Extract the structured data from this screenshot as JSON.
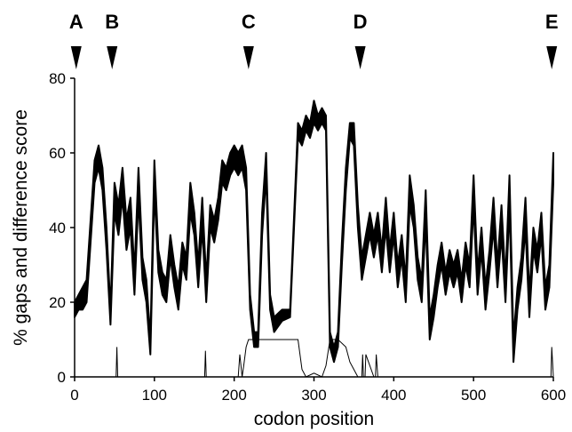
{
  "chart_data": {
    "type": "line",
    "xlabel": "codon position",
    "ylabel": "% gaps and difference score",
    "xlim": [
      0,
      600
    ],
    "ylim": [
      0,
      80
    ],
    "x_ticks": [
      0,
      100,
      200,
      300,
      400,
      500,
      600
    ],
    "y_ticks": [
      0,
      20,
      40,
      60,
      80
    ],
    "grid": false,
    "markers": [
      {
        "label": "A",
        "x": 2
      },
      {
        "label": "B",
        "x": 47
      },
      {
        "label": "C",
        "x": 218
      },
      {
        "label": "D",
        "x": 358
      },
      {
        "label": "E",
        "x": 598
      }
    ],
    "series": [
      {
        "kind": "difference-score-band",
        "color": "#000000",
        "x": [
          0,
          5,
          10,
          15,
          20,
          25,
          30,
          35,
          40,
          45,
          50,
          55,
          60,
          65,
          70,
          75,
          80,
          85,
          90,
          95,
          100,
          105,
          110,
          115,
          120,
          125,
          130,
          135,
          140,
          145,
          150,
          155,
          160,
          165,
          170,
          175,
          180,
          185,
          190,
          195,
          200,
          205,
          210,
          215,
          220,
          225,
          230,
          235,
          240,
          245,
          250,
          260,
          270,
          280,
          285,
          290,
          295,
          300,
          305,
          310,
          315,
          320,
          325,
          330,
          335,
          340,
          345,
          350,
          355,
          360,
          365,
          370,
          375,
          380,
          385,
          390,
          395,
          400,
          405,
          410,
          415,
          420,
          425,
          430,
          435,
          440,
          445,
          450,
          455,
          460,
          465,
          470,
          475,
          480,
          485,
          490,
          495,
          500,
          505,
          510,
          515,
          520,
          525,
          530,
          535,
          540,
          545,
          550,
          555,
          560,
          565,
          570,
          575,
          580,
          585,
          590,
          595,
          600
        ],
        "upper": [
          20,
          22,
          24,
          26,
          42,
          58,
          62,
          56,
          40,
          18,
          52,
          46,
          56,
          42,
          48,
          28,
          56,
          32,
          26,
          10,
          58,
          34,
          28,
          26,
          38,
          30,
          24,
          36,
          32,
          52,
          44,
          30,
          48,
          26,
          46,
          42,
          48,
          58,
          56,
          60,
          62,
          60,
          62,
          56,
          22,
          12,
          12,
          44,
          60,
          22,
          16,
          18,
          18,
          68,
          66,
          70,
          68,
          74,
          70,
          72,
          70,
          12,
          8,
          12,
          36,
          56,
          68,
          68,
          46,
          32,
          38,
          44,
          38,
          44,
          34,
          48,
          34,
          44,
          30,
          38,
          26,
          54,
          46,
          32,
          26,
          50,
          16,
          22,
          30,
          36,
          28,
          34,
          30,
          34,
          26,
          36,
          30,
          54,
          28,
          40,
          24,
          34,
          48,
          30,
          46,
          26,
          54,
          10,
          24,
          32,
          48,
          22,
          40,
          34,
          44,
          24,
          30,
          60
        ],
        "lower": [
          16,
          18,
          18,
          20,
          36,
          52,
          56,
          50,
          34,
          14,
          44,
          38,
          48,
          34,
          40,
          22,
          48,
          26,
          20,
          6,
          50,
          28,
          22,
          20,
          32,
          24,
          18,
          30,
          26,
          44,
          38,
          24,
          40,
          20,
          40,
          36,
          42,
          52,
          50,
          54,
          56,
          54,
          56,
          50,
          18,
          8,
          8,
          38,
          54,
          18,
          12,
          15,
          16,
          64,
          62,
          66,
          64,
          68,
          66,
          68,
          66,
          8,
          4,
          8,
          30,
          50,
          64,
          62,
          40,
          26,
          32,
          38,
          32,
          38,
          28,
          40,
          28,
          38,
          24,
          32,
          20,
          46,
          40,
          26,
          20,
          42,
          10,
          16,
          24,
          30,
          22,
          28,
          24,
          28,
          20,
          30,
          24,
          46,
          22,
          34,
          18,
          28,
          40,
          24,
          38,
          20,
          46,
          4,
          18,
          26,
          40,
          16,
          34,
          28,
          38,
          18,
          24,
          52
        ]
      },
      {
        "kind": "gap-percentage",
        "color": "#000000",
        "x": [
          0,
          52,
          53,
          54,
          55,
          56,
          160,
          163,
          164,
          165,
          166,
          205,
          207,
          210,
          212,
          215,
          218,
          220,
          230,
          240,
          250,
          260,
          270,
          280,
          285,
          290,
          300,
          310,
          315,
          320,
          325,
          330,
          340,
          345,
          350,
          355,
          360,
          361,
          362,
          364,
          365,
          375,
          377,
          378,
          380,
          381,
          595,
          597,
          598,
          600
        ],
        "y": [
          0,
          0,
          8,
          0,
          0,
          0,
          0,
          0,
          7,
          0,
          0,
          0,
          6,
          0,
          3,
          8,
          10,
          10,
          10,
          10,
          10,
          10,
          10,
          10,
          2,
          0,
          1,
          0,
          3,
          10,
          10,
          10,
          8,
          4,
          2,
          0,
          0,
          6,
          0,
          0,
          6,
          0,
          0,
          6,
          0,
          0,
          0,
          0,
          8,
          0
        ]
      }
    ]
  }
}
